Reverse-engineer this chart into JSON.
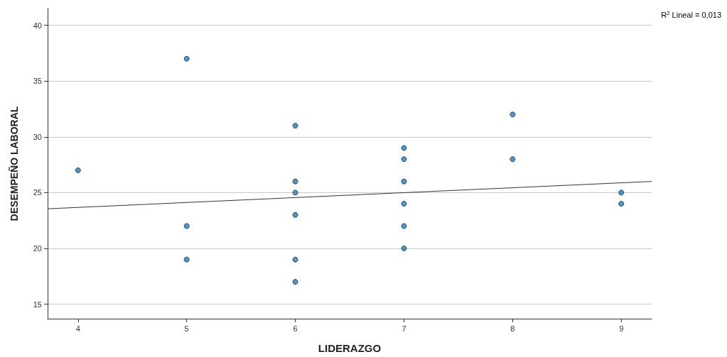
{
  "chart_data": {
    "type": "scatter",
    "xlabel": "LIDERAZGO",
    "ylabel": "DESEMPEÑO LABORAL",
    "annotations": [
      "R$^{2}$ Lineal = 0,013"
    ],
    "xlim": [
      3.72,
      9.28
    ],
    "xticks": [
      4,
      5,
      6,
      7,
      8,
      9
    ],
    "ylim": [
      13.7,
      41.5
    ],
    "yticks": [
      15,
      20,
      25,
      30,
      35,
      40
    ],
    "grid": "y",
    "marker": "circle",
    "series": [
      {
        "type": "scatter",
        "color": "#1f7fc4",
        "x": [
          4,
          5,
          5,
          5,
          6,
          6,
          6,
          6,
          6,
          6,
          7,
          7,
          7,
          7,
          7,
          7,
          8,
          8,
          9,
          9
        ],
        "values": [
          27,
          37,
          22,
          19,
          31,
          26,
          25,
          23,
          19,
          17,
          29,
          28,
          26,
          24,
          22,
          20,
          32,
          28,
          25,
          24
        ]
      },
      {
        "type": "line",
        "color": "#333333",
        "marker": "none",
        "line_style": "solid",
        "x": [
          3.72,
          9.28
        ],
        "values": [
          23.55,
          26.0
        ]
      }
    ]
  }
}
